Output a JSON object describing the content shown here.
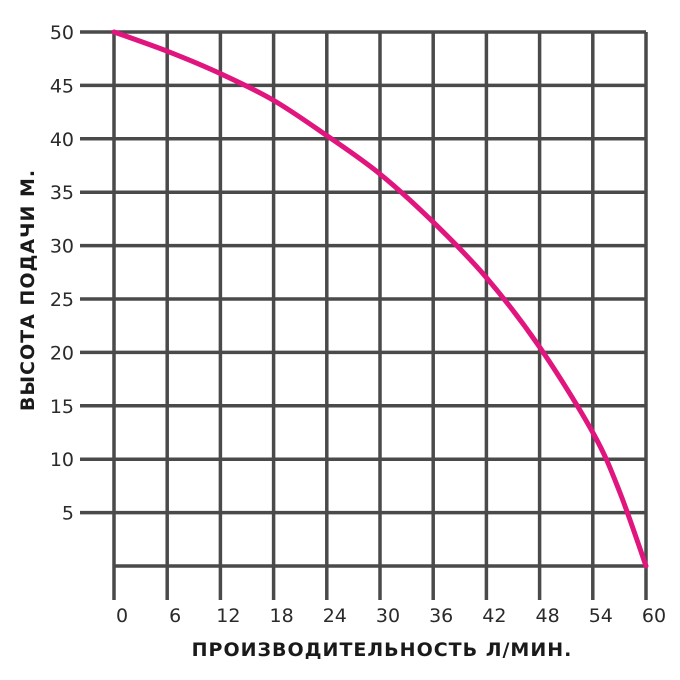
{
  "chart_data": {
    "type": "line",
    "title": "",
    "xlabel": "ПРОИЗВОДИТЕЛЬНОСТЬ Л/МИН.",
    "ylabel": "ВЫСОТА ПОДАЧИ М.",
    "x_ticks": [
      "0",
      "6",
      "12",
      "18",
      "24",
      "30",
      "36",
      "42",
      "48",
      "54",
      "60"
    ],
    "y_ticks": [
      "5",
      "10",
      "15",
      "20",
      "25",
      "30",
      "35",
      "40",
      "45",
      "50"
    ],
    "xlim": [
      0,
      60
    ],
    "ylim": [
      0,
      50
    ],
    "grid": true,
    "series": [
      {
        "color": "#e0157e",
        "x": [
          0,
          6,
          12,
          18,
          24,
          30,
          36,
          42,
          48,
          54,
          57,
          60
        ],
        "y": [
          50,
          48.2,
          46.1,
          43.6,
          40.3,
          36.7,
          32.2,
          27.0,
          20.5,
          12.5,
          7.0,
          0
        ]
      }
    ]
  }
}
